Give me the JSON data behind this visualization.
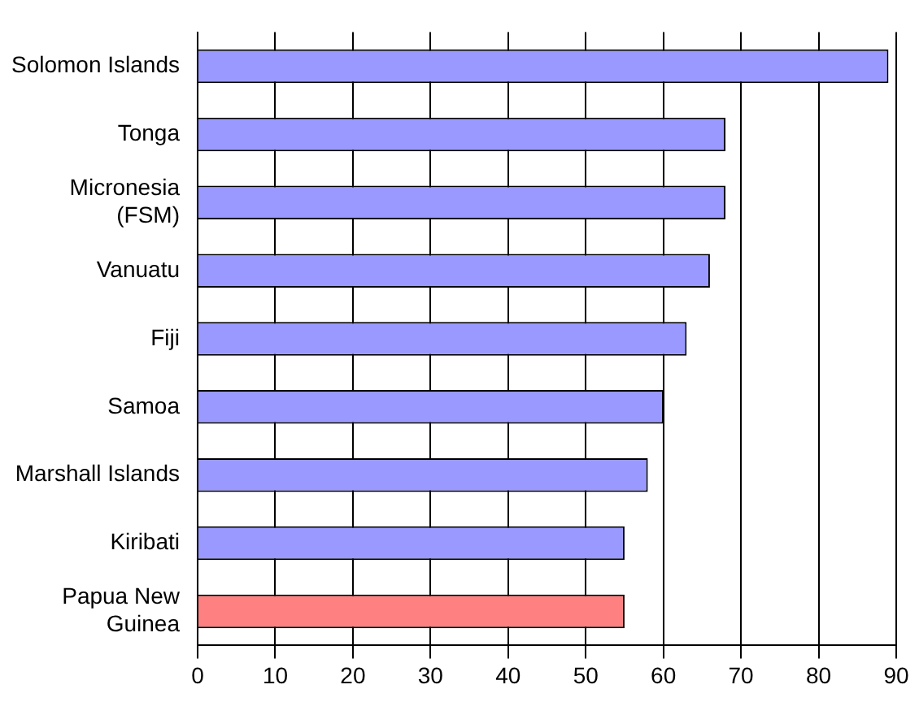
{
  "chart_data": {
    "type": "bar",
    "orientation": "horizontal",
    "categories": [
      "Solomon Islands",
      "Tonga",
      "Micronesia\n(FSM)",
      "Vanuatu",
      "Fiji",
      "Samoa",
      "Marshall Islands",
      "Kiribati",
      "Papua New\nGuinea"
    ],
    "values": [
      89,
      68,
      68,
      66,
      63,
      60,
      58,
      55,
      55
    ],
    "colors": [
      "#9999ff",
      "#9999ff",
      "#9999ff",
      "#9999ff",
      "#9999ff",
      "#9999ff",
      "#9999ff",
      "#9999ff",
      "#ff8080"
    ],
    "xlim": [
      0,
      90
    ],
    "xticks": [
      0,
      10,
      20,
      30,
      40,
      50,
      60,
      70,
      80,
      90
    ],
    "grid": "x",
    "legend": false
  }
}
